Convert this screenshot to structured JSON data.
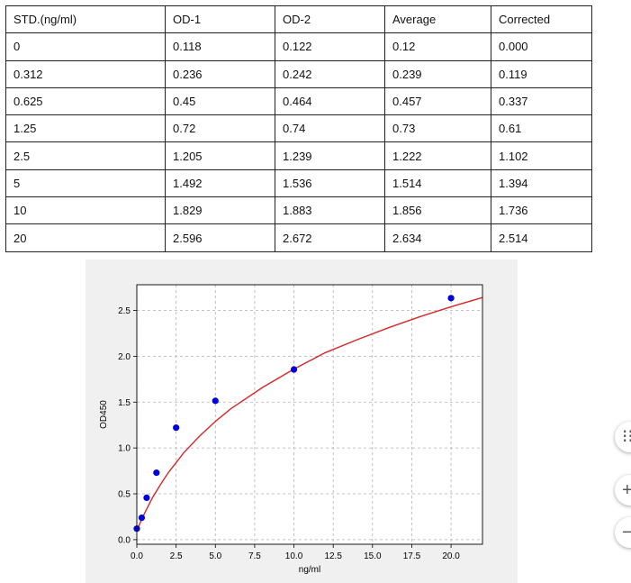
{
  "table": {
    "headers": [
      "STD.(ng/ml)",
      "OD-1",
      "OD-2",
      "Average",
      "Corrected"
    ],
    "rows": [
      [
        "0",
        "0.118",
        "0.122",
        "0.12",
        "0.000"
      ],
      [
        "0.312",
        "0.236",
        "0.242",
        "0.239",
        "0.119"
      ],
      [
        "0.625",
        "0.45",
        "0.464",
        "0.457",
        "0.337"
      ],
      [
        "1.25",
        "0.72",
        "0.74",
        "0.73",
        "0.61"
      ],
      [
        "2.5",
        "1.205",
        "1.239",
        "1.222",
        "1.102"
      ],
      [
        "5",
        "1.492",
        "1.536",
        "1.514",
        "1.394"
      ],
      [
        "10",
        "1.829",
        "1.883",
        "1.856",
        "1.736"
      ],
      [
        "20",
        "2.596",
        "2.672",
        "2.634",
        "2.514"
      ]
    ]
  },
  "chart_data": {
    "type": "scatter",
    "xlabel": "ng/ml",
    "ylabel": "OD450",
    "xlim": [
      0,
      22
    ],
    "ylim": [
      -0.05,
      2.78
    ],
    "xticks": [
      "0.0",
      "2.5",
      "5.0",
      "7.5",
      "10.0",
      "12.5",
      "15.0",
      "17.5",
      "20.0"
    ],
    "yticks": [
      "0.0",
      "0.5",
      "1.0",
      "1.5",
      "2.0",
      "2.5"
    ],
    "grid": true,
    "points": {
      "x": [
        0,
        0.312,
        0.625,
        1.25,
        2.5,
        5,
        10,
        20
      ],
      "y": [
        0.12,
        0.239,
        0.457,
        0.73,
        1.222,
        1.514,
        1.856,
        2.634
      ]
    },
    "fit_curve": {
      "x": [
        0,
        0.25,
        0.5,
        1,
        1.5,
        2,
        2.5,
        3,
        4,
        5,
        6,
        8,
        10,
        12,
        14,
        16,
        18,
        20,
        22
      ],
      "y": [
        0.1,
        0.2,
        0.29,
        0.46,
        0.6,
        0.73,
        0.84,
        0.95,
        1.13,
        1.29,
        1.43,
        1.66,
        1.86,
        2.04,
        2.18,
        2.31,
        2.43,
        2.54,
        2.64
      ]
    },
    "colors": {
      "points": "#0000dd",
      "curve": "#d62728",
      "grid": "#b0b0b0"
    }
  },
  "controls": [
    "⁝⁝",
    "+",
    "−"
  ]
}
